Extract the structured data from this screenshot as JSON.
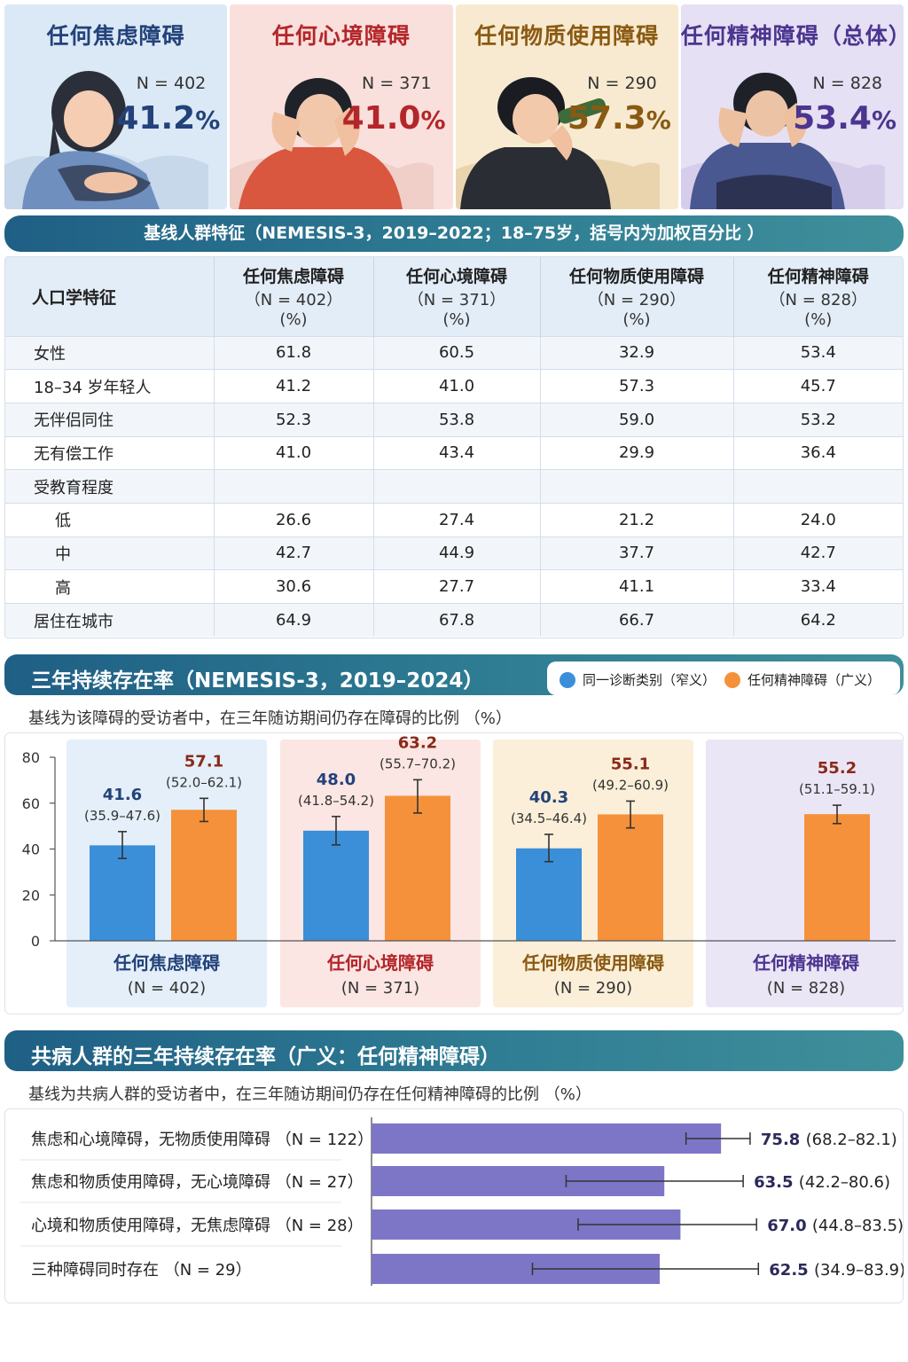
{
  "cards": [
    {
      "title": "任何焦虑障碍",
      "n": "N = 402",
      "pct": "41.2",
      "sym": "%",
      "color": "#23427a",
      "bg": "#dbe9f6"
    },
    {
      "title": "任何心境障碍",
      "n": "N = 371",
      "pct": "41.0",
      "sym": "%",
      "color": "#b3262a",
      "bg": "#f9e0dc"
    },
    {
      "title": "任何物质使用障碍",
      "n": "N = 290",
      "pct": "57.3",
      "sym": "%",
      "color": "#8a5a12",
      "bg": "#f8ead0"
    },
    {
      "title": "任何精神障碍（总体）",
      "n": "N = 828",
      "pct": "53.4",
      "sym": "%",
      "color": "#4b3590",
      "bg": "#e6e0f4"
    }
  ],
  "table_section": {
    "title": "基线人群特征（NEMESIS-3，2019–2022；18–75岁，括号内为加权百分比 ）",
    "headers": [
      {
        "h1": "人口学特征",
        "h2": "",
        "h3": ""
      },
      {
        "h1": "任何焦虑障碍",
        "h2": "（N = 402）",
        "h3": "(%)"
      },
      {
        "h1": "任何心境障碍",
        "h2": "（N = 371）",
        "h3": "(%)"
      },
      {
        "h1": "任何物质使用障碍",
        "h2": "（N = 290）",
        "h3": "(%)"
      },
      {
        "h1": "任何精神障碍",
        "h2": "（N = 828）",
        "h3": "(%)"
      }
    ],
    "rows": [
      {
        "label": "女性",
        "sub": false,
        "values": [
          "61.8",
          "60.5",
          "32.9",
          "53.4"
        ]
      },
      {
        "label": "18–34 岁年轻人",
        "sub": false,
        "values": [
          "41.2",
          "41.0",
          "57.3",
          "45.7"
        ]
      },
      {
        "label": "无伴侣同住",
        "sub": false,
        "values": [
          "52.3",
          "53.8",
          "59.0",
          "53.2"
        ]
      },
      {
        "label": "无有偿工作",
        "sub": false,
        "values": [
          "41.0",
          "43.4",
          "29.9",
          "36.4"
        ]
      },
      {
        "label": "受教育程度",
        "sub": false,
        "values": [
          "",
          "",
          "",
          ""
        ]
      },
      {
        "label": "低",
        "sub": true,
        "values": [
          "26.6",
          "27.4",
          "21.2",
          "24.0"
        ]
      },
      {
        "label": "中",
        "sub": true,
        "values": [
          "42.7",
          "44.9",
          "37.7",
          "42.7"
        ]
      },
      {
        "label": "高",
        "sub": true,
        "values": [
          "30.6",
          "27.7",
          "41.1",
          "33.4"
        ]
      },
      {
        "label": "居住在城市",
        "sub": false,
        "values": [
          "64.9",
          "67.8",
          "66.7",
          "64.2"
        ]
      }
    ]
  },
  "chart_data": [
    {
      "type": "bar",
      "title": "三年持续存在率（NEMESIS-3，2019–2024）",
      "subtitle": "基线为该障碍的受访者中，在三年随访期间仍存在障碍的比例 （%）",
      "ylim": [
        0,
        80
      ],
      "yticks": [
        "80",
        "60",
        "40",
        "20",
        "0"
      ],
      "legend_placement": "top-right",
      "colors": {
        "narrow": "#3a8fd8",
        "broad": "#f5913a"
      },
      "groups": [
        {
          "name": "任何焦虑障碍",
          "n": "(N = 402)",
          "bg": "#e4eff9",
          "color": "#23427a",
          "bars": [
            {
              "series": "narrow",
              "value": 41.6,
              "lo": 35.9,
              "hi": 47.6,
              "label": "41.6",
              "ci": "(35.9–47.6)"
            },
            {
              "series": "broad",
              "value": 57.1,
              "lo": 52.0,
              "hi": 62.1,
              "label": "57.1",
              "ci": "(52.0–62.1)"
            }
          ]
        },
        {
          "name": "任何心境障碍",
          "n": "(N = 371)",
          "bg": "#fbe6e3",
          "color": "#b3262a",
          "bars": [
            {
              "series": "narrow",
              "value": 48.0,
              "lo": 41.8,
              "hi": 54.2,
              "label": "48.0",
              "ci": "(41.8–54.2)"
            },
            {
              "series": "broad",
              "value": 63.2,
              "lo": 55.7,
              "hi": 70.2,
              "label": "63.2",
              "ci": "(55.7–70.2)"
            }
          ]
        },
        {
          "name": "任何物质使用障碍",
          "n": "(N = 290)",
          "bg": "#fbefd9",
          "color": "#8a5a12",
          "bars": [
            {
              "series": "narrow",
              "value": 40.3,
              "lo": 34.5,
              "hi": 46.4,
              "label": "40.3",
              "ci": "(34.5–46.4)"
            },
            {
              "series": "broad",
              "value": 55.1,
              "lo": 49.2,
              "hi": 60.9,
              "label": "55.1",
              "ci": "(49.2–60.9)"
            }
          ]
        },
        {
          "name": "任何精神障碍",
          "n": "(N = 828)",
          "bg": "#ebe6f6",
          "color": "#4b3590",
          "bars": [
            {
              "series": "broad",
              "value": 55.2,
              "lo": 51.1,
              "hi": 59.1,
              "label": "55.2",
              "ci": "(51.1–59.1)"
            }
          ]
        }
      ],
      "legend": [
        {
          "series": "narrow",
          "name": "同一诊断类别（窄义）"
        },
        {
          "series": "broad",
          "name": "任何精神障碍（广义）"
        }
      ]
    },
    {
      "type": "bar",
      "orientation": "horizontal",
      "title": "共病人群的三年持续存在率（广义：任何精神障碍）",
      "subtitle": "基线为共病人群的受访者中，在三年随访期间仍存在任何精神障碍的比例 （%）",
      "bar_color": "#7d76c6",
      "rows": [
        {
          "label": "焦虑和心境障碍，无物质使用障碍 （N = 122）",
          "value": 75.8,
          "lo": 68.2,
          "hi": 82.1,
          "val_label": "75.8",
          "ci": "(68.2–82.1)"
        },
        {
          "label": "焦虑和物质使用障碍，无心境障碍 （N = 27）",
          "value": 63.5,
          "lo": 42.2,
          "hi": 80.6,
          "val_label": "63.5",
          "ci": "(42.2–80.6)"
        },
        {
          "label": "心境和物质使用障碍，无焦虑障碍 （N = 28）",
          "value": 67.0,
          "lo": 44.8,
          "hi": 83.5,
          "val_label": "67.0",
          "ci": "(44.8–83.5)"
        },
        {
          "label": "三种障碍同时存在 （N = 29）",
          "value": 62.5,
          "lo": 34.9,
          "hi": 83.9,
          "val_label": "62.5",
          "ci": "(34.9–83.9)"
        }
      ]
    }
  ]
}
